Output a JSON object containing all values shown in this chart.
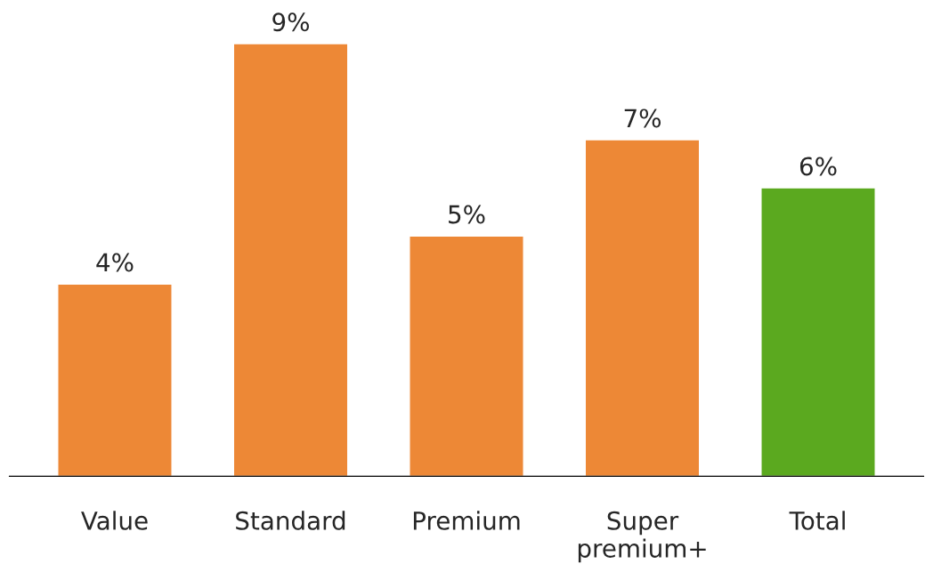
{
  "chart_data": {
    "type": "bar",
    "categories": [
      "Value",
      "Standard",
      "Premium",
      "Super\npremium+",
      "Total"
    ],
    "values": [
      4,
      9,
      5,
      7,
      6
    ],
    "colors": [
      "#ed8836",
      "#ed8836",
      "#ed8836",
      "#ed8836",
      "#5ba91f"
    ],
    "value_labels": [
      "4%",
      "9%",
      "5%",
      "7%",
      "6%"
    ],
    "grid": false,
    "legend": false
  }
}
